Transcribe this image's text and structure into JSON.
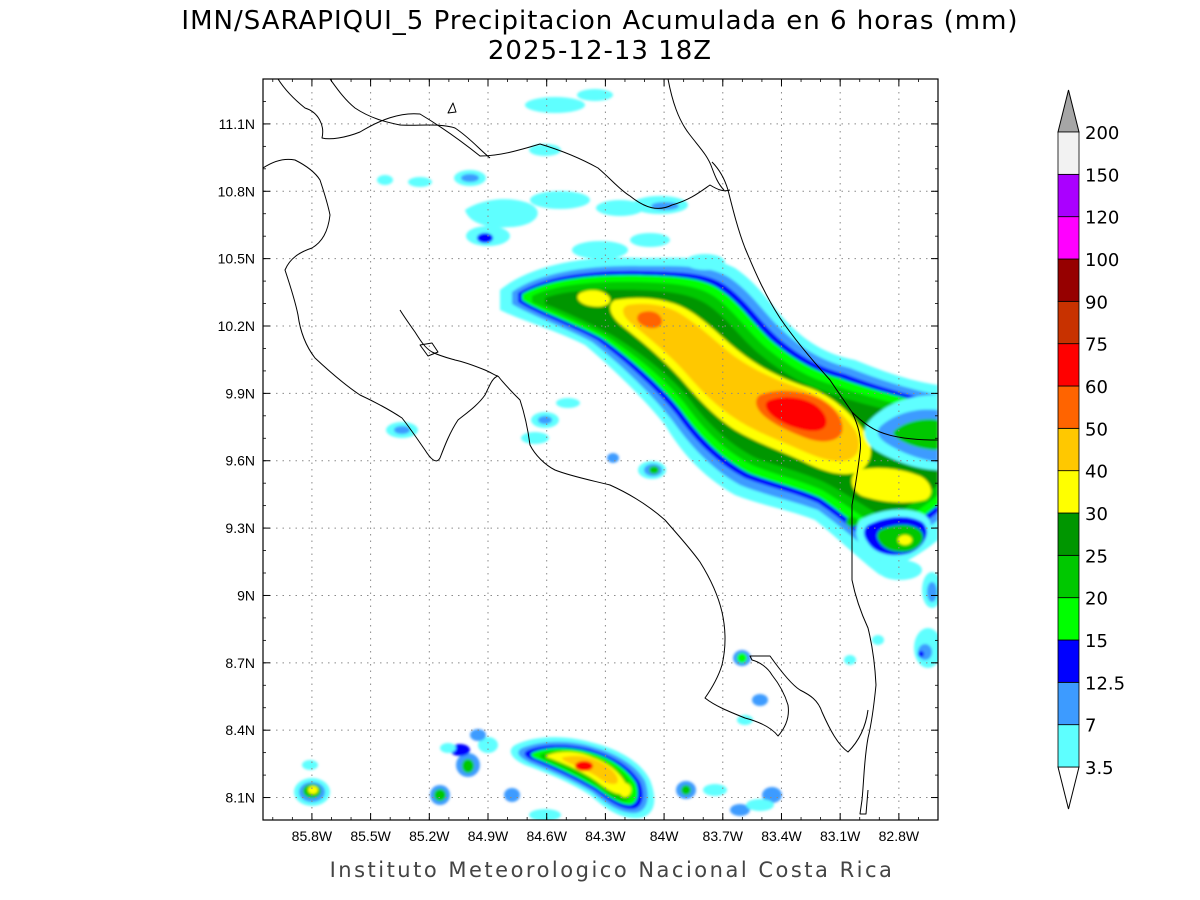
{
  "title": {
    "line1": "IMN/SARAPIQUI_5 Precipitacion Acumulada en 6 horas (mm)",
    "line2": "2025-12-13 18Z"
  },
  "credit": "Instituto Meteorologico Nacional Costa Rica",
  "map": {
    "lon_range": [
      -86.05,
      -82.6
    ],
    "lat_range": [
      8.0,
      11.3
    ],
    "lon_ticks": [
      {
        "value": -85.8,
        "label": "85.8W"
      },
      {
        "value": -85.5,
        "label": "85.5W"
      },
      {
        "value": -85.2,
        "label": "85.2W"
      },
      {
        "value": -84.9,
        "label": "84.9W"
      },
      {
        "value": -84.6,
        "label": "84.6W"
      },
      {
        "value": -84.3,
        "label": "84.3W"
      },
      {
        "value": -84.0,
        "label": "84W"
      },
      {
        "value": -83.7,
        "label": "83.7W"
      },
      {
        "value": -83.4,
        "label": "83.4W"
      },
      {
        "value": -83.1,
        "label": "83.1W"
      },
      {
        "value": -82.8,
        "label": "82.8W"
      }
    ],
    "lat_ticks": [
      {
        "value": 11.1,
        "label": "11.1N"
      },
      {
        "value": 10.8,
        "label": "10.8N"
      },
      {
        "value": 10.5,
        "label": "10.5N"
      },
      {
        "value": 10.2,
        "label": "10.2N"
      },
      {
        "value": 9.9,
        "label": "9.9N"
      },
      {
        "value": 9.6,
        "label": "9.6N"
      },
      {
        "value": 9.3,
        "label": "9.3N"
      },
      {
        "value": 9.0,
        "label": "9N"
      },
      {
        "value": 8.7,
        "label": "8.7N"
      },
      {
        "value": 8.4,
        "label": "8.4N"
      },
      {
        "value": 8.1,
        "label": "8.1N"
      }
    ],
    "grid": true
  },
  "colorbar": {
    "levels": [
      {
        "label": "3.5",
        "color": "#5effff"
      },
      {
        "label": "7",
        "color": "#3d9bff"
      },
      {
        "label": "12.5",
        "color": "#0000ff"
      },
      {
        "label": "15",
        "color": "#00ff00"
      },
      {
        "label": "20",
        "color": "#00c800"
      },
      {
        "label": "25",
        "color": "#009600"
      },
      {
        "label": "30",
        "color": "#ffff00"
      },
      {
        "label": "40",
        "color": "#ffc800"
      },
      {
        "label": "50",
        "color": "#ff6400"
      },
      {
        "label": "60",
        "color": "#ff0000"
      },
      {
        "label": "75",
        "color": "#c83200"
      },
      {
        "label": "90",
        "color": "#960000"
      },
      {
        "label": "100",
        "color": "#ff00ff"
      },
      {
        "label": "120",
        "color": "#aa00ff"
      },
      {
        "label": "150",
        "color": "#f2f2f2"
      },
      {
        "label": "200",
        "color": "#a6a6a6"
      }
    ],
    "arrow_low_color": "#ffffff",
    "arrow_high_color": "#a6a6a6"
  }
}
